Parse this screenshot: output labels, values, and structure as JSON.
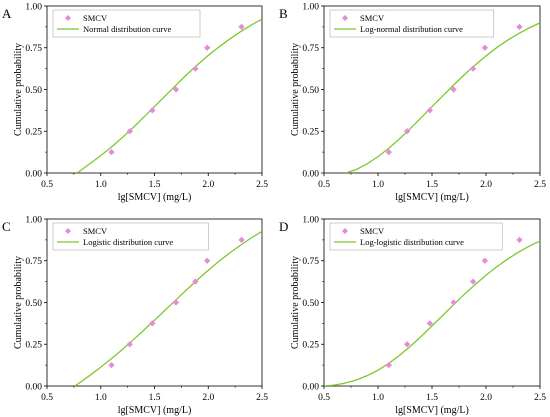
{
  "colors": {
    "point": "#e78ad8",
    "curve": "#7ec82e",
    "axis": "#000000",
    "legend_border": "#999999"
  },
  "chart_data": [
    {
      "type": "scatter",
      "panel": "A",
      "title": "",
      "xlabel": "lg[SMCV] (mg/L)",
      "ylabel": "Cumulative probability",
      "xlim": [
        0.5,
        2.5
      ],
      "ylim": [
        0.0,
        1.0
      ],
      "xticks": [
        "0.5",
        "1.0",
        "1.5",
        "2.0",
        "2.5"
      ],
      "yticks": [
        "0.00",
        "0.25",
        "0.50",
        "0.75",
        "1.00"
      ],
      "legend_position": "top-left",
      "grid": false,
      "series": [
        {
          "name": "SMCV",
          "kind": "points",
          "x": [
            1.1,
            1.27,
            1.48,
            1.7,
            1.88,
            1.99,
            2.31
          ],
          "y": [
            0.125,
            0.25,
            0.375,
            0.5,
            0.625,
            0.75,
            0.875
          ]
        },
        {
          "name": "Normal distribution curve",
          "kind": "line",
          "x": [
            0.78,
            0.9,
            1.0,
            1.1,
            1.2,
            1.3,
            1.4,
            1.5,
            1.6,
            1.7,
            1.8,
            1.9,
            2.0,
            2.1,
            2.2,
            2.3,
            2.4,
            2.5
          ],
          "y": [
            0.0,
            0.056,
            0.104,
            0.156,
            0.212,
            0.271,
            0.334,
            0.398,
            0.462,
            0.526,
            0.589,
            0.648,
            0.704,
            0.755,
            0.802,
            0.846,
            0.886,
            0.922
          ]
        }
      ]
    },
    {
      "type": "scatter",
      "panel": "B",
      "title": "",
      "xlabel": "lg[SMCV] (mg/L)",
      "ylabel": "Cumulative probability",
      "xlim": [
        0.5,
        2.5
      ],
      "ylim": [
        0.0,
        1.0
      ],
      "xticks": [
        "0.5",
        "1.0",
        "1.5",
        "2.0",
        "2.5"
      ],
      "yticks": [
        "0.00",
        "0.25",
        "0.50",
        "0.75",
        "1.00"
      ],
      "legend_position": "top-left",
      "grid": false,
      "series": [
        {
          "name": "SMCV",
          "kind": "points",
          "x": [
            1.1,
            1.27,
            1.48,
            1.7,
            1.88,
            1.99,
            2.31
          ],
          "y": [
            0.125,
            0.25,
            0.375,
            0.5,
            0.625,
            0.75,
            0.875
          ]
        },
        {
          "name": "Log-normal distribution curve",
          "kind": "line",
          "x": [
            0.7,
            0.8,
            0.9,
            1.0,
            1.1,
            1.2,
            1.3,
            1.4,
            1.5,
            1.6,
            1.7,
            1.8,
            1.9,
            2.0,
            2.1,
            2.2,
            2.3,
            2.4,
            2.5
          ],
          "y": [
            0.0,
            0.021,
            0.055,
            0.098,
            0.148,
            0.205,
            0.267,
            0.331,
            0.397,
            0.462,
            0.527,
            0.589,
            0.647,
            0.701,
            0.751,
            0.795,
            0.834,
            0.869,
            0.899
          ]
        }
      ]
    },
    {
      "type": "scatter",
      "panel": "C",
      "title": "",
      "xlabel": "lg[SMCV] (mg/L)",
      "ylabel": "Cumulative probability",
      "xlim": [
        0.5,
        2.5
      ],
      "ylim": [
        0.0,
        1.0
      ],
      "xticks": [
        "0.5",
        "1.0",
        "1.5",
        "2.0",
        "2.5"
      ],
      "yticks": [
        "0.00",
        "0.25",
        "0.50",
        "0.75",
        "1.00"
      ],
      "legend_position": "top-left",
      "grid": false,
      "series": [
        {
          "name": "SMCV",
          "kind": "points",
          "x": [
            1.1,
            1.27,
            1.48,
            1.7,
            1.88,
            1.99,
            2.31
          ],
          "y": [
            0.125,
            0.25,
            0.375,
            0.5,
            0.625,
            0.75,
            0.875
          ]
        },
        {
          "name": "Logistic distribution curve",
          "kind": "line",
          "x": [
            0.76,
            0.9,
            1.0,
            1.1,
            1.2,
            1.3,
            1.4,
            1.5,
            1.6,
            1.7,
            1.8,
            1.9,
            2.0,
            2.1,
            2.2,
            2.3,
            2.4,
            2.5
          ],
          "y": [
            0.0,
            0.064,
            0.113,
            0.164,
            0.218,
            0.275,
            0.334,
            0.394,
            0.455,
            0.516,
            0.577,
            0.636,
            0.693,
            0.747,
            0.797,
            0.843,
            0.887,
            0.926
          ]
        }
      ]
    },
    {
      "type": "scatter",
      "panel": "D",
      "title": "",
      "xlabel": "lg[SMCV] (mg/L)",
      "ylabel": "Cumulative probability",
      "xlim": [
        0.5,
        2.5
      ],
      "ylim": [
        0.0,
        1.0
      ],
      "xticks": [
        "0.5",
        "1.0",
        "1.5",
        "2.0",
        "2.5"
      ],
      "yticks": [
        "0.00",
        "0.25",
        "0.50",
        "0.75",
        "1.00"
      ],
      "legend_position": "top-left",
      "grid": false,
      "series": [
        {
          "name": "SMCV",
          "kind": "points",
          "x": [
            1.1,
            1.27,
            1.48,
            1.7,
            1.88,
            1.99,
            2.31
          ],
          "y": [
            0.125,
            0.25,
            0.375,
            0.5,
            0.625,
            0.75,
            0.875
          ]
        },
        {
          "name": "Log-logistic distribution curve",
          "kind": "line",
          "x": [
            0.5,
            0.6,
            0.7,
            0.8,
            0.9,
            1.0,
            1.1,
            1.2,
            1.3,
            1.4,
            1.5,
            1.6,
            1.7,
            1.8,
            1.9,
            2.0,
            2.1,
            2.2,
            2.3,
            2.4,
            2.5
          ],
          "y": [
            0.0,
            0.006,
            0.018,
            0.036,
            0.062,
            0.095,
            0.136,
            0.184,
            0.238,
            0.297,
            0.36,
            0.423,
            0.487,
            0.549,
            0.608,
            0.663,
            0.714,
            0.76,
            0.801,
            0.837,
            0.868
          ]
        }
      ]
    }
  ]
}
